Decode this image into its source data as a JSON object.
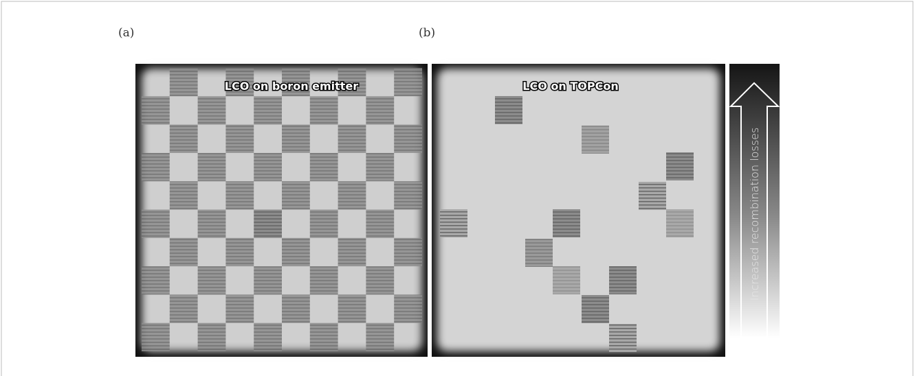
{
  "panels": [
    {
      "label": "(a)",
      "title": "LCO on boron emitter"
    },
    {
      "label": "(b)",
      "title": "LCO on TOPCon"
    }
  ],
  "scale": {
    "label": "Increased recombination losses"
  }
}
